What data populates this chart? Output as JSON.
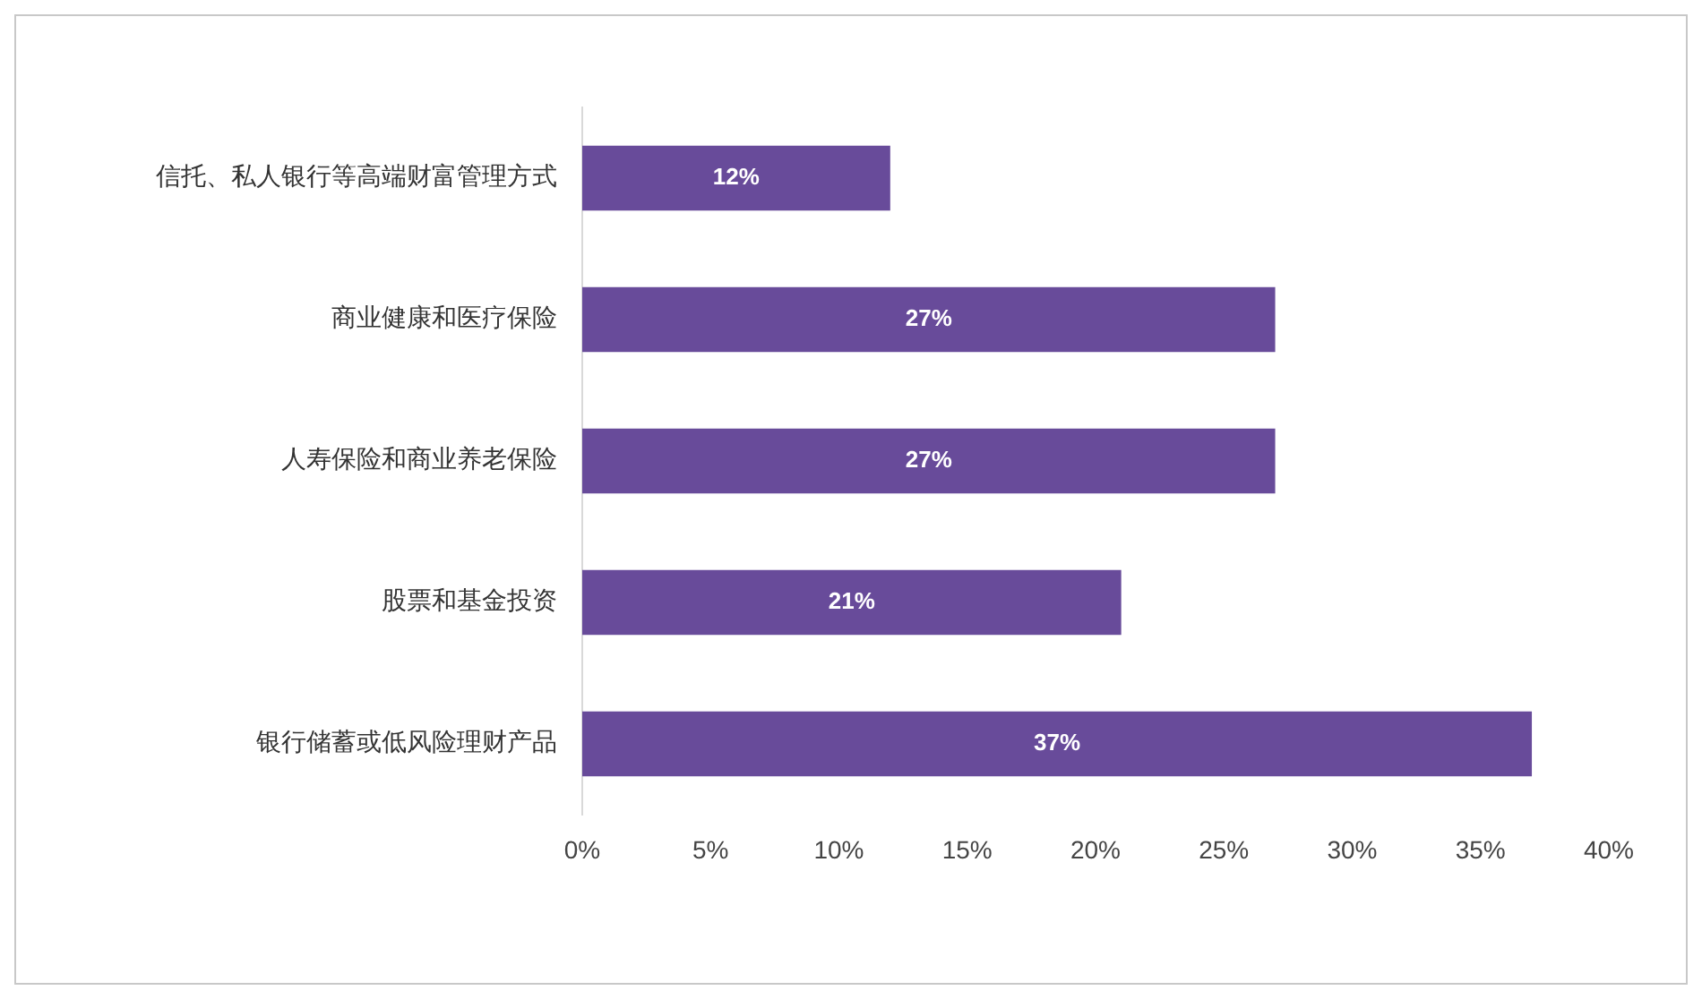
{
  "chart_data": {
    "type": "bar",
    "orientation": "horizontal",
    "categories": [
      "信托、私人银行等高端财富管理方式",
      "商业健康和医疗保险",
      "人寿保险和商业养老保险",
      "股票和基金投资",
      "银行储蓄或低风险理财产品"
    ],
    "values": [
      12,
      27,
      27,
      21,
      37
    ],
    "value_labels": [
      "12%",
      "27%",
      "27%",
      "21%",
      "37%"
    ],
    "color": "#684b9a",
    "xlim": [
      0,
      40
    ],
    "xticks": [
      {
        "value": 0,
        "label": "0%"
      },
      {
        "value": 5,
        "label": "5%"
      },
      {
        "value": 10,
        "label": "10%"
      },
      {
        "value": 15,
        "label": "15%"
      },
      {
        "value": 20,
        "label": "20%"
      },
      {
        "value": 25,
        "label": "25%"
      },
      {
        "value": 30,
        "label": "30%"
      },
      {
        "value": 35,
        "label": "35%"
      },
      {
        "value": 40,
        "label": "40%"
      }
    ],
    "grid": false,
    "legend": false
  }
}
